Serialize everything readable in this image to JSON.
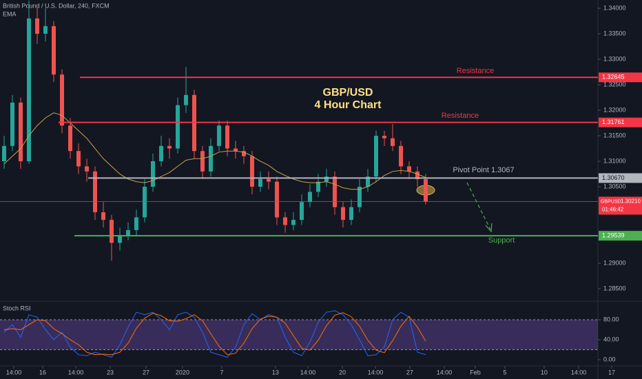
{
  "chart_data": [
    {
      "type": "candlestick",
      "header": "British Pound / U.S. Dollar, 240, FXCM",
      "indicator": "EMA",
      "title": "GBP/USD",
      "subtitle": "4 Hour Chart",
      "up_color": "#26a69a",
      "down_color": "#ef5350",
      "ema_color": "#c8a24a",
      "open": [
        1.31,
        1.313,
        1.3215,
        1.31,
        1.338,
        1.335,
        1.3365,
        1.327,
        1.317,
        1.312,
        1.309,
        1.308,
        1.3,
        1.2985,
        1.294,
        1.2955,
        1.2965,
        1.299,
        1.305,
        1.31,
        1.313,
        1.3125,
        1.321,
        1.323,
        1.312,
        1.308,
        1.313,
        1.317,
        1.3125,
        1.312,
        1.311,
        1.305,
        1.3065,
        1.306,
        1.299,
        1.2975,
        1.2985,
        1.302,
        1.304,
        1.306,
        1.307,
        1.301,
        1.2985,
        1.301,
        1.305,
        1.307,
        1.315,
        1.3145,
        1.313,
        1.309,
        1.308,
        1.3065
      ],
      "high": [
        1.315,
        1.323,
        1.3225,
        1.3415,
        1.34,
        1.34,
        1.3375,
        1.328,
        1.3185,
        1.3135,
        1.3105,
        1.309,
        1.302,
        1.2995,
        1.297,
        1.298,
        1.3005,
        1.3065,
        1.3115,
        1.315,
        1.3145,
        1.3225,
        1.3285,
        1.324,
        1.313,
        1.3145,
        1.318,
        1.318,
        1.314,
        1.313,
        1.312,
        1.308,
        1.308,
        1.307,
        1.3,
        1.3,
        1.3035,
        1.3055,
        1.3075,
        1.3085,
        1.308,
        1.302,
        1.3025,
        1.3065,
        1.3085,
        1.316,
        1.316,
        1.3173,
        1.314,
        1.31,
        1.309,
        1.3075
      ],
      "low": [
        1.3085,
        1.312,
        1.3085,
        1.3095,
        1.333,
        1.3335,
        1.3255,
        1.3155,
        1.3105,
        1.3075,
        1.306,
        1.2985,
        1.297,
        1.2905,
        1.2925,
        1.2945,
        1.2955,
        1.298,
        1.304,
        1.309,
        1.3105,
        1.3115,
        1.3195,
        1.3105,
        1.3065,
        1.307,
        1.312,
        1.311,
        1.3105,
        1.3095,
        1.3035,
        1.304,
        1.3045,
        1.2975,
        1.296,
        1.2965,
        1.2975,
        1.301,
        1.303,
        1.305,
        1.2995,
        1.297,
        1.2975,
        1.3,
        1.304,
        1.306,
        1.313,
        1.312,
        1.3075,
        1.3065,
        1.305,
        1.3015
      ],
      "close": [
        1.313,
        1.3215,
        1.31,
        1.338,
        1.335,
        1.3365,
        1.327,
        1.317,
        1.312,
        1.309,
        1.308,
        1.3,
        1.2985,
        1.294,
        1.2955,
        1.2965,
        1.299,
        1.305,
        1.31,
        1.313,
        1.3125,
        1.321,
        1.323,
        1.312,
        1.308,
        1.313,
        1.317,
        1.3125,
        1.312,
        1.311,
        1.305,
        1.3065,
        1.306,
        1.299,
        1.2975,
        1.2985,
        1.302,
        1.304,
        1.306,
        1.307,
        1.301,
        1.2985,
        1.301,
        1.305,
        1.307,
        1.315,
        1.3145,
        1.313,
        1.309,
        1.308,
        1.3065,
        1.3021
      ],
      "ema": [
        1.3095,
        1.311,
        1.3125,
        1.315,
        1.317,
        1.3185,
        1.3195,
        1.319,
        1.3175,
        1.316,
        1.3145,
        1.3125,
        1.3105,
        1.309,
        1.3075,
        1.3065,
        1.306,
        1.3058,
        1.3062,
        1.307,
        1.3078,
        1.309,
        1.3102,
        1.3105,
        1.3105,
        1.311,
        1.3118,
        1.312,
        1.312,
        1.3118,
        1.311,
        1.31,
        1.3092,
        1.308,
        1.3072,
        1.3065,
        1.306,
        1.3058,
        1.3058,
        1.306,
        1.3055,
        1.3048,
        1.3045,
        1.3045,
        1.305,
        1.306,
        1.3072,
        1.308,
        1.3082,
        1.308,
        1.3075,
        1.3068
      ],
      "levels": [
        {
          "text": "Resistance",
          "value": 1.32645,
          "tag": "1.32645",
          "start": 9.17,
          "color": "#f23645"
        },
        {
          "text": "Resistance",
          "value": 1.31761,
          "tag": "1.31761",
          "start": 6.58,
          "color": "#f23645"
        },
        {
          "text": "Pivot Point 1.3067",
          "value": 1.3067,
          "tag": "1.30670",
          "start": 10.17,
          "color": "#b2b5be"
        },
        {
          "text": "Support",
          "value": 1.29539,
          "tag": "1.29539",
          "start": 8.5,
          "color": "#4caf50"
        }
      ],
      "current": {
        "symbol": "GBPUSD",
        "value": 1.3021,
        "label": "1.30210",
        "countdown": "01:46:42",
        "color": "#f23645"
      },
      "ylim": [
        1.28257,
        1.34162
      ],
      "yticks": [
        {
          "value": 1.285,
          "label": "1.28500"
        },
        {
          "value": 1.29,
          "label": "1.29000"
        },
        {
          "value": 1.305,
          "label": "1.30500"
        },
        {
          "value": 1.31,
          "label": "1.31000"
        },
        {
          "value": 1.315,
          "label": "1.31500"
        },
        {
          "value": 1.32,
          "label": "1.32000"
        },
        {
          "value": 1.325,
          "label": "1.32500"
        },
        {
          "value": 1.33,
          "label": "1.33000"
        },
        {
          "value": 1.335,
          "label": "1.33500"
        },
        {
          "value": 1.34,
          "label": "1.34000"
        }
      ],
      "xlim": [
        -0.5,
        77.17
      ],
      "xticks": [
        {
          "value": 1.17,
          "label": "14:00"
        },
        {
          "value": 4.67,
          "label": "16"
        },
        {
          "value": 8.67,
          "label": "14:00"
        },
        {
          "value": 12.83,
          "label": "23"
        },
        {
          "value": 17.17,
          "label": "27"
        },
        {
          "value": 21.58,
          "label": "2020"
        },
        {
          "value": 26.33,
          "label": "7"
        },
        {
          "value": 32.83,
          "label": "13"
        },
        {
          "value": 36.75,
          "label": "14:00"
        },
        {
          "value": 40.92,
          "label": "20"
        },
        {
          "value": 44.92,
          "label": "14:00"
        },
        {
          "value": 49.08,
          "label": "27"
        },
        {
          "value": 53.25,
          "label": "14:00"
        },
        {
          "value": 57,
          "label": "Feb"
        },
        {
          "value": 60.58,
          "label": "5"
        },
        {
          "value": 65.33,
          "label": "10"
        },
        {
          "value": 69.5,
          "label": "14:00"
        },
        {
          "value": 73.5,
          "label": "17"
        }
      ]
    },
    {
      "type": "line",
      "title": "Stoch RSI",
      "series": [
        {
          "color": "#2962ff",
          "values": [
            55,
            70,
            45,
            90,
            85,
            60,
            40,
            55,
            25,
            10,
            8,
            15,
            10,
            5,
            30,
            65,
            95,
            90,
            95,
            80,
            60,
            90,
            95,
            85,
            55,
            15,
            10,
            5,
            25,
            70,
            92,
            80,
            90,
            85,
            45,
            15,
            8,
            35,
            75,
            95,
            98,
            90,
            70,
            40,
            8,
            10,
            25,
            80,
            95,
            85,
            15,
            10
          ]
        },
        {
          "color": "#ff6d00",
          "values": [
            60,
            62,
            60,
            70,
            80,
            78,
            62,
            52,
            40,
            30,
            15,
            10,
            11,
            10,
            15,
            33,
            63,
            83,
            93,
            88,
            78,
            77,
            82,
            90,
            78,
            52,
            27,
            10,
            13,
            33,
            62,
            81,
            87,
            85,
            73,
            48,
            23,
            19,
            39,
            68,
            89,
            94,
            86,
            67,
            39,
            19,
            14,
            38,
            67,
            87,
            65,
            37
          ]
        }
      ],
      "band": [
        20,
        80
      ],
      "band_color": "#7e57c2",
      "ylim": [
        -11,
        113
      ],
      "yticks": [
        {
          "value": 0,
          "label": "0.00"
        },
        {
          "value": 40,
          "label": "40.00"
        },
        {
          "value": 80,
          "label": "80.00"
        }
      ]
    }
  ]
}
